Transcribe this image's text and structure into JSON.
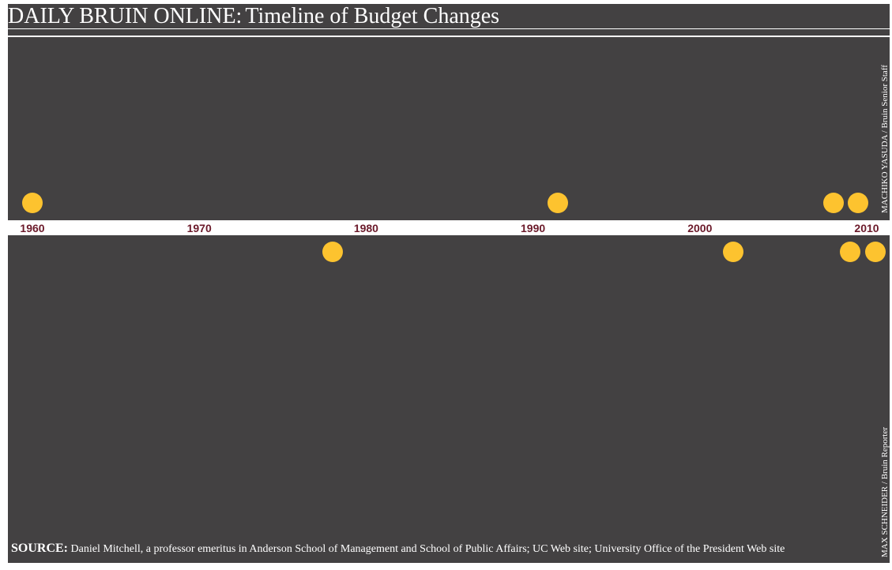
{
  "header": {
    "brand": "DAILY BRUIN ONLINE:",
    "title": "Timeline of Budget Changes"
  },
  "credits": {
    "top": "MACHIKO YASUDA / Bruin Senior Staff",
    "bottom": "MAX SCHNEIDER / Bruin Reporter"
  },
  "source": {
    "label": "SOURCE:",
    "text": "Daniel Mitchell, a professor emeritus in Anderson School of Management and School of Public Affairs; UC Web site; University Office of the President Web site"
  },
  "chart_data": {
    "type": "scatter",
    "x_axis_ticks": [
      "1960",
      "1970",
      "1980",
      "1990",
      "2000",
      "2010"
    ],
    "xlim": [
      1960,
      2010
    ],
    "series": [
      {
        "values": [
          1960,
          1991.5,
          2008,
          2009.5
        ]
      },
      {
        "values": [
          1978,
          2002,
          2009,
          2010.5
        ]
      }
    ],
    "colors": {
      "panel": "#434142",
      "dot": "#fdc32f",
      "tick": "#6b1a2a"
    }
  }
}
